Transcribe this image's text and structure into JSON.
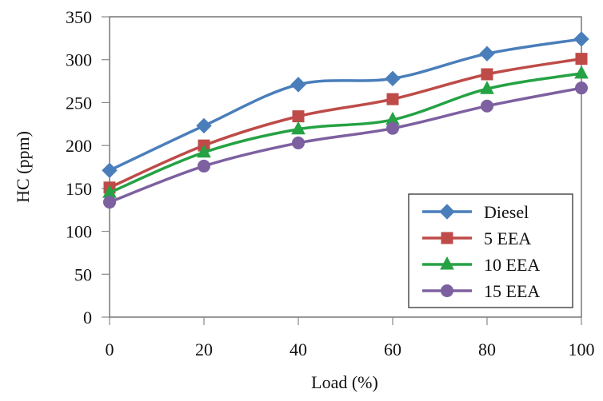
{
  "chart_data": {
    "type": "line",
    "title": "",
    "xlabel": "Load (%)",
    "ylabel": "HC (ppm)",
    "x": [
      0,
      20,
      40,
      60,
      80,
      100
    ],
    "xlim": [
      0,
      100
    ],
    "ylim": [
      0,
      350
    ],
    "xticks": [
      0,
      20,
      40,
      60,
      80,
      100
    ],
    "yticks": [
      0,
      50,
      100,
      150,
      200,
      250,
      300,
      350
    ],
    "grid": false,
    "legend_position": "bottom-right",
    "series": [
      {
        "name": "Diesel",
        "color": "#4a7ebb",
        "marker": "diamond",
        "values": [
          171,
          223,
          271,
          278,
          307,
          324
        ]
      },
      {
        "name": "5 EEA",
        "color": "#be4b48",
        "marker": "square",
        "values": [
          151,
          200,
          234,
          254,
          283,
          301
        ]
      },
      {
        "name": "10 EEA",
        "color": "#25a244",
        "marker": "triangle",
        "values": [
          145,
          192,
          219,
          230,
          266,
          284
        ]
      },
      {
        "name": "15 EEA",
        "color": "#7d60a0",
        "marker": "circle",
        "values": [
          134,
          176,
          203,
          220,
          246,
          267
        ]
      }
    ]
  }
}
